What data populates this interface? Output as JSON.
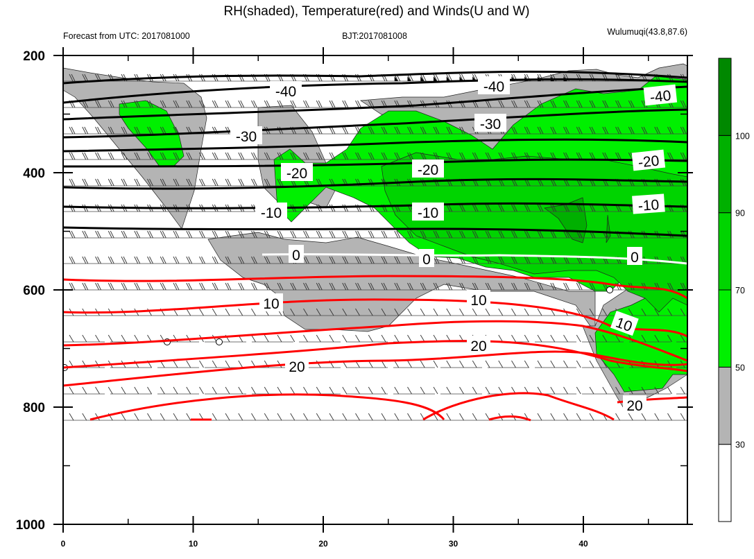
{
  "chart_data": {
    "type": "contour",
    "title": "RH(shaded), Temperature(red) and Winds(U and W)",
    "subtitle_left": "Forecast from UTC: 2017081000",
    "subtitle_center": "BJT:2017081008",
    "subtitle_right": "Wulumuqi(43.8,87.6)",
    "x_axis": {
      "range": [
        0,
        48
      ],
      "ticks": [
        0,
        10,
        20,
        30,
        40
      ],
      "tick_labels": [
        "0",
        "10",
        "20",
        "30",
        "40"
      ]
    },
    "y_axis": {
      "range": [
        200,
        1000
      ],
      "inverted": true,
      "ticks": [
        200,
        400,
        600,
        800,
        1000
      ],
      "tick_labels": [
        "200",
        "400",
        "600",
        "800",
        "1000"
      ]
    },
    "colorbar": {
      "levels": [
        30,
        50,
        70,
        90,
        100
      ],
      "labels": [
        "30",
        "50",
        "70",
        "90",
        "100"
      ],
      "colors": [
        "#ffffff",
        "#b4b4b4",
        "#00f000",
        "#00d400",
        "#00b000",
        "#008800"
      ]
    },
    "temperature_contours": [
      {
        "value": -40,
        "label": "-40",
        "color": "#000000",
        "pressure": [
          255,
          255,
          258,
          249
        ]
      },
      {
        "value": -30,
        "label": "-30",
        "color": "#000000",
        "pressure": [
          330,
          335,
          330,
          320
        ]
      },
      {
        "value": -20,
        "label": "-20",
        "color": "#000000",
        "pressure": [
          420,
          425,
          413,
          400
        ]
      },
      {
        "value": -10,
        "label": "-10",
        "color": "#000000",
        "pressure": [
          487,
          500,
          490,
          489
        ]
      },
      {
        "value": 0,
        "label": "0",
        "color": "#ffffff",
        "pressure": [
          580,
          586,
          584,
          598
        ]
      },
      {
        "value": 10,
        "label": "10",
        "color": "#ff0000",
        "pressure": [
          688,
          670,
          660,
          710
        ]
      },
      {
        "value": 20,
        "label": "20",
        "color": "#ff0000",
        "pressure": [
          770,
          800,
          765,
          845
        ]
      }
    ],
    "contour_labels": [
      "-40",
      "-40",
      "-40",
      "-30",
      "-30",
      "-20",
      "-20",
      "-20",
      "-10",
      "-10",
      "-10",
      "0",
      "0",
      "0",
      "10",
      "10",
      "10",
      "20",
      "20",
      "20"
    ]
  }
}
